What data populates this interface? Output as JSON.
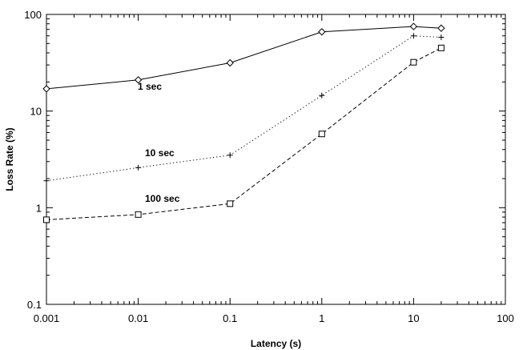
{
  "chart_data": {
    "type": "line",
    "title": "",
    "xlabel": "Latency (s)",
    "ylabel": "Loss Rate (%)",
    "x_scale": "log",
    "y_scale": "log",
    "xlim": [
      0.001,
      100
    ],
    "ylim": [
      0.1,
      100
    ],
    "x_ticks": [
      "0.001",
      "0.01",
      "0.1",
      "1",
      "10",
      "100"
    ],
    "y_ticks": [
      "0.1",
      "1",
      "10",
      "100"
    ],
    "grid": false,
    "series": [
      {
        "name": "1 sec",
        "line_style": "solid",
        "marker": "diamond",
        "x": [
          0.001,
          0.01,
          0.1,
          1,
          10,
          20
        ],
        "values": [
          17,
          21,
          31.5,
          66,
          75,
          72
        ]
      },
      {
        "name": "10 sec",
        "line_style": "dotted",
        "marker": "plus",
        "x": [
          0.001,
          0.01,
          0.1,
          1,
          10,
          20
        ],
        "values": [
          1.9,
          2.6,
          3.5,
          14.5,
          60,
          58
        ]
      },
      {
        "name": "100 sec",
        "line_style": "dashed",
        "marker": "square",
        "x": [
          0.001,
          0.01,
          0.1,
          1,
          10,
          20
        ],
        "values": [
          0.75,
          0.85,
          1.1,
          5.8,
          32,
          45
        ]
      }
    ]
  }
}
